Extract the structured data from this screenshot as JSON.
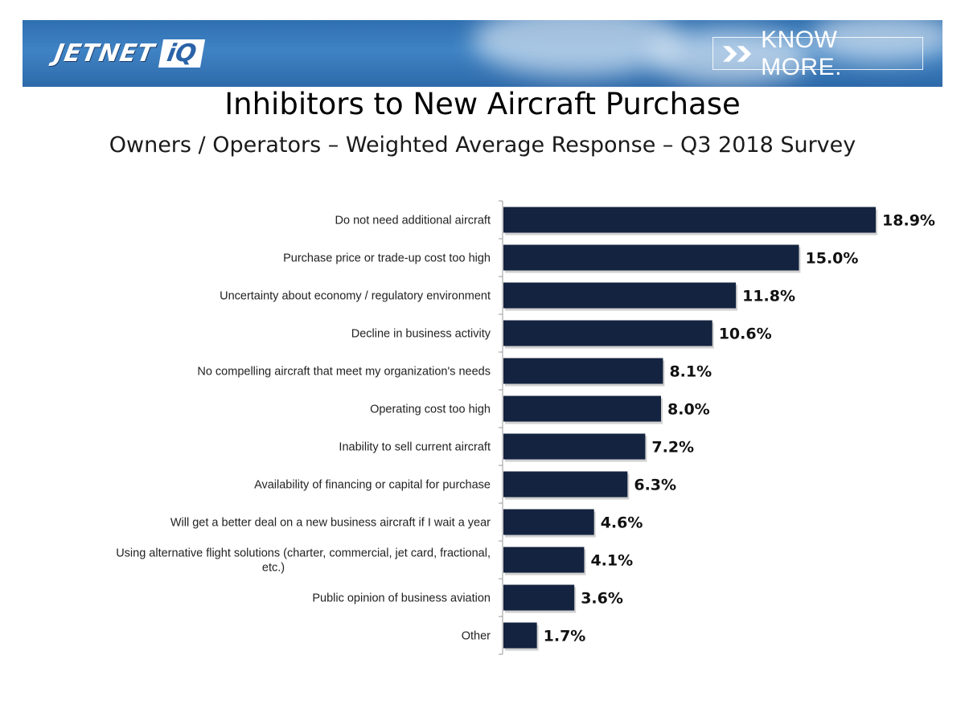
{
  "banner": {
    "logo_left": "JETNET",
    "logo_right": "iQ",
    "button_label": "KNOW MORE."
  },
  "colors": {
    "bar": "#14233f",
    "banner": "#3a7cc0"
  },
  "chart_data": {
    "type": "bar",
    "orientation": "horizontal",
    "title": "Inhibitors to New Aircraft Purchase",
    "subtitle": "Owners / Operators – Weighted Average Response – Q3 2018 Survey",
    "xlim": [
      0,
      20
    ],
    "grid": false,
    "categories": [
      [
        "Do not need additional aircraft"
      ],
      [
        "Purchase price or trade-up cost too high"
      ],
      [
        "Uncertainty about economy / regulatory environment"
      ],
      [
        "Decline in business activity"
      ],
      [
        "No compelling aircraft that meet my organization's needs"
      ],
      [
        "Operating cost too high"
      ],
      [
        "Inability to sell current aircraft"
      ],
      [
        "Availability of financing or capital for purchase"
      ],
      [
        "Will get a better deal on a new business aircraft if I wait a year"
      ],
      [
        "Using alternative flight solutions (charter, commercial, jet card, fractional,",
        "etc.)"
      ],
      [
        "Public opinion of business aviation"
      ],
      [
        "Other"
      ]
    ],
    "values": [
      18.9,
      15.0,
      11.8,
      10.6,
      8.1,
      8.0,
      7.2,
      6.3,
      4.6,
      4.1,
      3.6,
      1.7
    ],
    "value_labels": [
      "18.9%",
      "15.0%",
      "11.8%",
      "10.6%",
      "8.1%",
      "8.0%",
      "7.2%",
      "6.3%",
      "4.6%",
      "4.1%",
      "3.6%",
      "1.7%"
    ]
  }
}
